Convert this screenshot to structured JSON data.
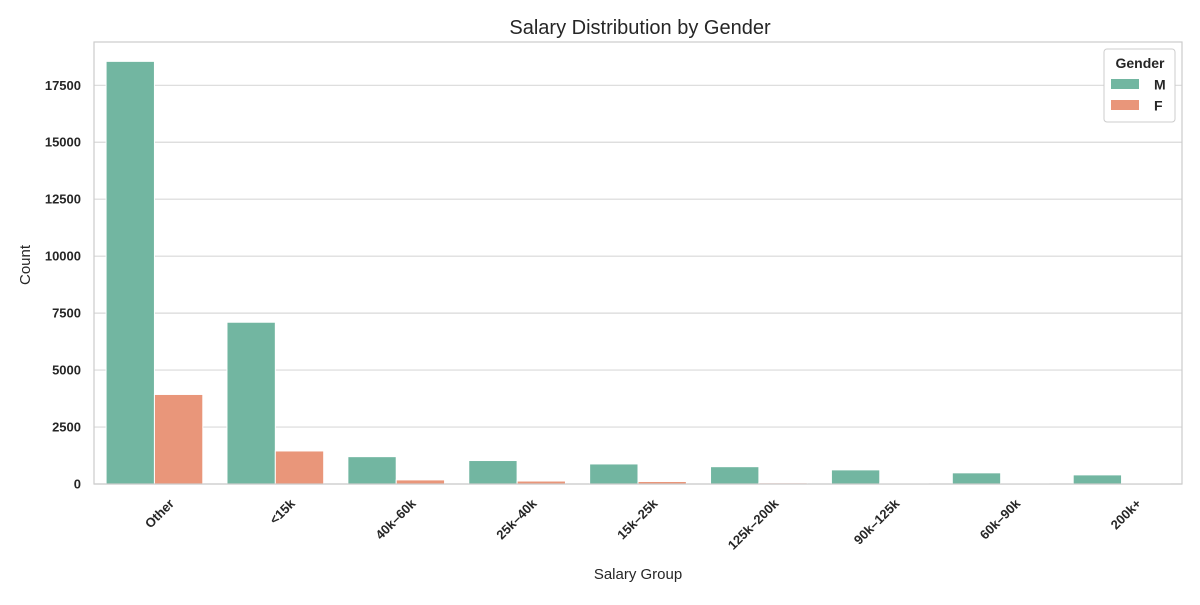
{
  "chart_data": {
    "type": "bar",
    "title": "Salary Distribution by Gender",
    "xlabel": "Salary Group",
    "ylabel": "Count",
    "ylim": [
      0,
      19400
    ],
    "yticks": [
      0,
      2500,
      5000,
      7500,
      10000,
      12500,
      15000,
      17500
    ],
    "grid": "horizontal",
    "legend": {
      "title": "Gender",
      "placement": "top-right"
    },
    "categories": [
      "Other",
      "<15k",
      "40k–60k",
      "25k–40k",
      "15k–25k",
      "125k–200k",
      "90k–125k",
      "60k–90k",
      "200k+"
    ],
    "series": [
      {
        "name": "M",
        "color": "#72b6a1",
        "values": [
          18550,
          7100,
          1200,
          1030,
          880,
          760,
          620,
          490,
          400
        ]
      },
      {
        "name": "F",
        "color": "#e9967a",
        "values": [
          3930,
          1450,
          180,
          130,
          110,
          50,
          40,
          25,
          30
        ]
      }
    ]
  }
}
